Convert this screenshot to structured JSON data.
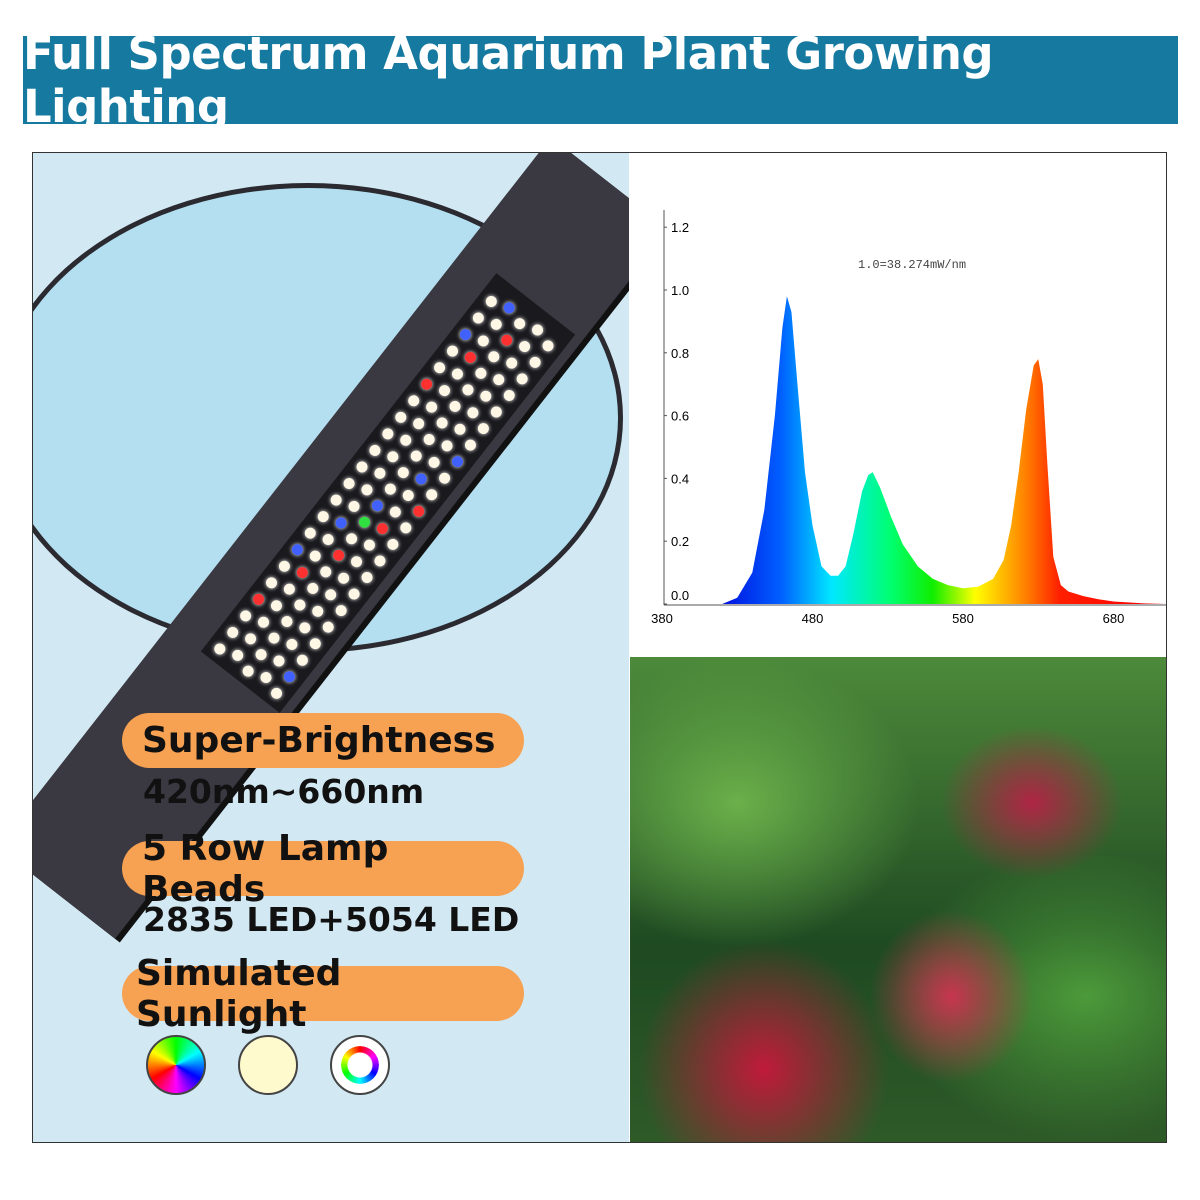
{
  "header": {
    "title": "Full Spectrum Aquarium Plant Growing Lighting"
  },
  "features": [
    {
      "title": "Super-Brightness",
      "detail": "420nm~660nm"
    },
    {
      "title": "5 Row Lamp Beads",
      "detail": "2835 LED+5054 LED"
    },
    {
      "title": "Simulated Sunlight",
      "detail": ""
    }
  ],
  "mode_icons": [
    "rgb-color-wheel-icon",
    "warm-white-icon",
    "color-cycle-icon"
  ],
  "chart_data": {
    "type": "area",
    "annotation": "1.0=38.274mW/nm",
    "xlim": [
      380,
      720
    ],
    "ylim": [
      0,
      1.25
    ],
    "x_ticks": [
      "380",
      "480",
      "580",
      "680"
    ],
    "y_ticks": [
      "0.0",
      "0.2",
      "0.4",
      "0.6",
      "0.8",
      "1.0",
      "1.2"
    ],
    "fill": "wavelength spectrum gradient",
    "x": [
      420,
      430,
      440,
      448,
      455,
      460,
      463,
      466,
      470,
      475,
      480,
      486,
      492,
      497,
      502,
      507,
      513,
      517,
      520,
      525,
      532,
      540,
      550,
      560,
      570,
      580,
      590,
      600,
      607,
      612,
      617,
      622,
      627,
      630,
      633,
      636,
      640,
      645,
      650,
      660,
      670,
      680,
      700,
      716
    ],
    "y": [
      0,
      0.02,
      0.1,
      0.3,
      0.6,
      0.88,
      0.98,
      0.93,
      0.7,
      0.42,
      0.25,
      0.12,
      0.09,
      0.09,
      0.12,
      0.22,
      0.36,
      0.41,
      0.42,
      0.37,
      0.28,
      0.19,
      0.12,
      0.08,
      0.06,
      0.05,
      0.055,
      0.08,
      0.14,
      0.25,
      0.42,
      0.62,
      0.76,
      0.78,
      0.7,
      0.45,
      0.15,
      0.06,
      0.04,
      0.025,
      0.015,
      0.008,
      0.002,
      0
    ]
  }
}
